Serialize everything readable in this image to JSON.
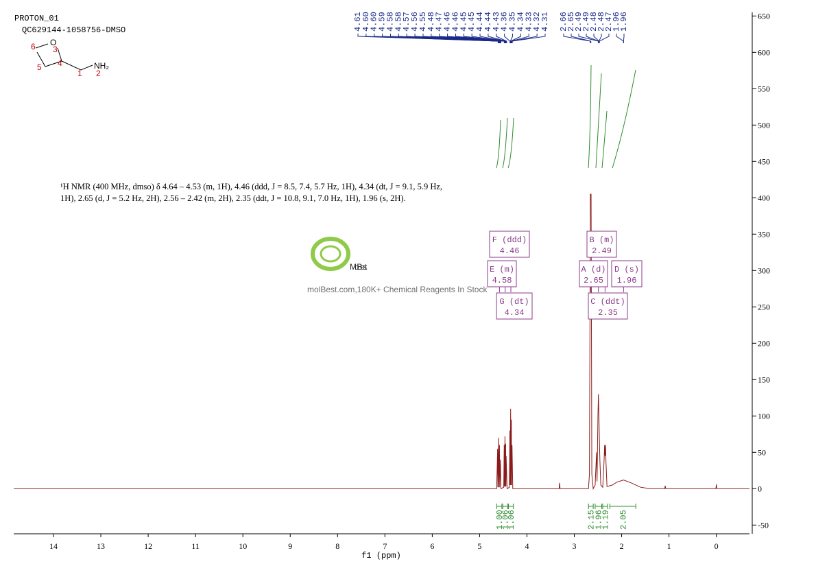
{
  "header": {
    "title": "PROTON_01",
    "sample": "QC629144-1058756-DMSO"
  },
  "molecule": {
    "atoms": [
      "O",
      "NH₂"
    ],
    "numbers": [
      "1",
      "2",
      "3",
      "4",
      "5",
      "6"
    ]
  },
  "description": "¹H NMR (400 MHz, dmso) δ 4.64 – 4.53 (m, 1H), 4.46 (ddd, J = 8.5, 7.4, 5.7 Hz, 1H), 4.34 (dt, J = 9.1, 5.9 Hz, 1H), 2.65 (d, J = 5.2 Hz, 2H), 2.56 – 2.42 (m, 2H), 2.35 (ddt, J = 10.8, 9.1, 7.0 Hz, 1H), 1.96 (s, 2H).",
  "watermark": {
    "brand": "MolBest",
    "tagline": "molBest.com,180K+ Chemical Reagents In Stock"
  },
  "chart_data": {
    "type": "line",
    "xlabel": "f1 (ppm)",
    "color": "#8b1a1a",
    "x": [
      14.84,
      5.0,
      4.64,
      4.62,
      4.615,
      4.6,
      4.595,
      4.58,
      4.575,
      4.56,
      4.55,
      4.49,
      4.48,
      4.475,
      4.465,
      4.46,
      4.45,
      4.445,
      4.44,
      4.42,
      4.37,
      4.36,
      4.355,
      4.345,
      4.34,
      4.33,
      4.325,
      4.315,
      4.3,
      3.32,
      3.31,
      3.3,
      2.7,
      2.68,
      2.66,
      2.645,
      2.63,
      2.6,
      2.56,
      2.53,
      2.52,
      2.5,
      2.49,
      2.48,
      2.46,
      2.44,
      2.4,
      2.37,
      2.36,
      2.35,
      2.34,
      2.33,
      2.31,
      2.2,
      2.1,
      1.96,
      1.8,
      1.6,
      1.4,
      1.09,
      1.08,
      1.07,
      0.01,
      0,
      -0.01,
      -0.7
    ],
    "values": [
      0,
      0,
      0,
      55,
      2,
      70,
      2,
      60,
      2,
      40,
      0,
      2,
      60,
      3,
      72,
      3,
      62,
      3,
      45,
      0,
      2,
      80,
      5,
      110,
      5,
      95,
      5,
      60,
      0,
      0,
      8,
      0,
      0,
      20,
      405,
      405,
      20,
      0,
      5,
      50,
      10,
      100,
      130,
      100,
      40,
      5,
      2,
      40,
      60,
      45,
      60,
      35,
      3,
      5,
      9,
      12,
      8,
      2,
      0,
      0,
      4,
      0,
      0,
      6,
      0,
      0
    ],
    "xlim": [
      14.84,
      -0.7
    ],
    "xticks": [
      14,
      13,
      12,
      11,
      10,
      9,
      8,
      7,
      6,
      5,
      4,
      3,
      2,
      1,
      0
    ],
    "ylim": [
      -62,
      655
    ],
    "yticks": [
      -50,
      0,
      50,
      100,
      150,
      200,
      250,
      300,
      350,
      400,
      450,
      500,
      550,
      600,
      650
    ],
    "peaks": [
      4.61,
      {
        "value": 4.6,
        "label": "4.60"
      },
      {
        "value": 4.6,
        "label": "4.60"
      },
      4.59,
      4.58,
      4.58,
      4.57,
      4.56,
      4.55,
      4.48,
      4.47,
      4.46,
      4.46,
      4.45,
      4.45,
      4.44,
      4.44,
      4.43,
      4.36,
      4.35,
      4.34,
      4.33,
      4.32,
      4.31,
      2.66,
      2.65,
      2.49,
      2.49,
      2.48,
      2.48,
      2.47,
      1.96,
      1.96
    ],
    "multiplets": [
      {
        "label": "F (ddd)",
        "shift": 4.46
      },
      {
        "label": "E (m)",
        "shift": 4.58
      },
      {
        "label": "G (dt)",
        "shift": 4.34
      },
      {
        "label": "B (m)",
        "shift": 2.49
      },
      {
        "label": "A (d)",
        "shift": 2.65
      },
      {
        "label": "D (s)",
        "shift": 1.96
      },
      {
        "label": "C (ddt)",
        "shift": 2.35
      }
    ],
    "integrals": [
      {
        "value": 1,
        "label": "1.00",
        "range": [
          4.64,
          4.53
        ]
      },
      {
        "value": 1.06,
        "label": "1.06",
        "range": [
          4.51,
          4.41
        ]
      },
      {
        "value": 1.06,
        "label": "1.06",
        "range": [
          4.39,
          4.29
        ]
      },
      {
        "value": 2.15,
        "label": "2.15",
        "range": [
          2.7,
          2.6
        ]
      },
      {
        "value": 1.96,
        "label": "1.96",
        "range": [
          2.56,
          2.42
        ]
      },
      {
        "value": 1.19,
        "label": "1.19",
        "range": [
          2.4,
          2.3
        ]
      },
      {
        "value": 2.05,
        "label": "2.05",
        "range": [
          2.25,
          1.7
        ]
      }
    ]
  }
}
